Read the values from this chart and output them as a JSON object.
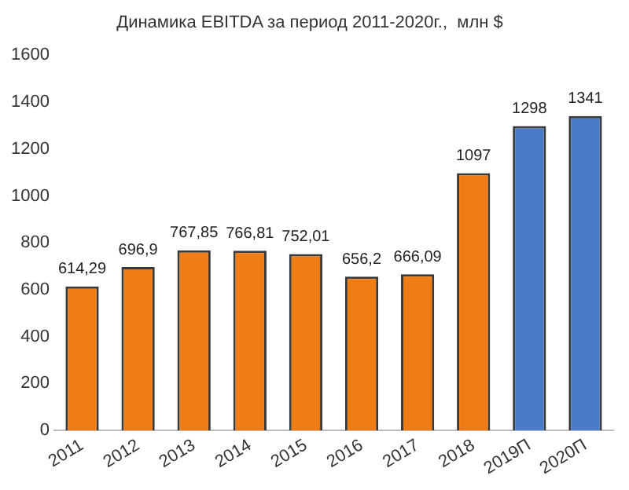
{
  "chart_data": {
    "type": "bar",
    "title": "Динамика EBITDA за период 2011-2020г.,  млн $",
    "categories": [
      "2011",
      "2012",
      "2013",
      "2014",
      "2015",
      "2016",
      "2017",
      "2018",
      "2019П",
      "2020П"
    ],
    "values": [
      614.29,
      696.9,
      767.85,
      766.81,
      752.01,
      656.2,
      666.09,
      1097,
      1298,
      1341
    ],
    "colors": [
      "#f07c16",
      "#f07c16",
      "#f07c16",
      "#f07c16",
      "#f07c16",
      "#f07c16",
      "#f07c16",
      "#f07c16",
      "#4a7bc6",
      "#4a7bc6"
    ],
    "value_labels": [
      "614,29",
      "696,9",
      "767,85",
      "766,81",
      "752,01",
      "656,2",
      "666,09",
      "1097",
      "1298",
      "1341"
    ],
    "ylim": [
      0,
      1600
    ],
    "yticks": [
      0,
      200,
      400,
      600,
      800,
      1000,
      1200,
      1400,
      1600
    ],
    "grid": false,
    "legend": false
  }
}
